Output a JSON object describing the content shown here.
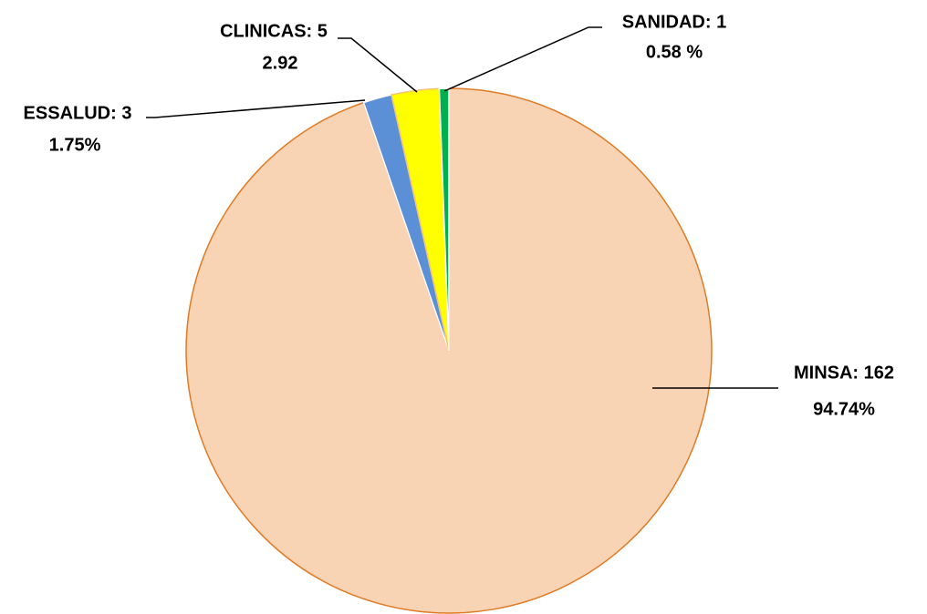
{
  "chart_data": {
    "type": "pie",
    "values": [
      162,
      3,
      5,
      1
    ],
    "value_labels": [
      "MINSA: 162",
      "ESSALUD: 3",
      "CLINICAS: 5",
      "SANIDAD: 1"
    ],
    "percents": [
      94.74,
      1.75,
      2.92,
      0.58
    ],
    "percent_labels": [
      "94.74%",
      "1.75%",
      "2.92",
      "0.58 %"
    ],
    "colors": [
      "#f8d3b4",
      "#5b8fd6",
      "#ffff00",
      "#00b050"
    ],
    "edge_colors": [
      "#e07b25",
      "#ffffff",
      "#f4c27a",
      "#ffffff"
    ]
  }
}
